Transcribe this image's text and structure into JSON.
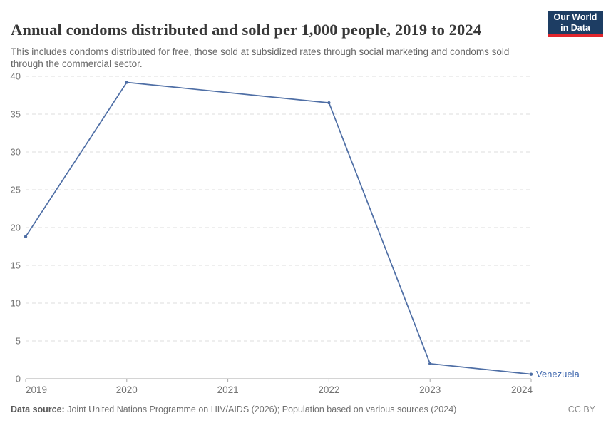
{
  "header": {
    "title": "Annual condoms distributed and sold per 1,000 people, 2019 to 2024",
    "subtitle": "This includes condoms distributed for free, those sold at subsidized rates through social marketing and condoms sold through the commercial sector.",
    "logo": {
      "line1": "Our World",
      "line2": "in Data"
    }
  },
  "footer": {
    "source_label": "Data source:",
    "source_text": " Joint United Nations Programme on HIV/AIDS (2026); Population based on various sources (2024)",
    "license": "CC BY"
  },
  "chart_data": {
    "type": "line",
    "title": "Annual condoms distributed and sold per 1,000 people, 2019 to 2024",
    "xlabel": "",
    "ylabel": "",
    "x": [
      2019,
      2020,
      2021,
      2022,
      2023,
      2024
    ],
    "series": [
      {
        "name": "Venezuela",
        "values": [
          18.8,
          39.2,
          null,
          36.5,
          2,
          0.6
        ],
        "marker_years": [
          2019,
          2020,
          2022,
          2023,
          2024
        ],
        "note": "2021 has no marker; line interpolates between 2020 and 2022"
      }
    ],
    "x_ticks": [
      2019,
      2020,
      2021,
      2022,
      2023,
      2024
    ],
    "y_ticks": [
      0,
      5,
      10,
      15,
      20,
      25,
      30,
      35,
      40
    ],
    "xlim": [
      2019,
      2024
    ],
    "ylim": [
      0,
      40
    ],
    "grid": "horizontal dashed gridlines, solid baseline at 0",
    "legend_position": "end-of-line entity label",
    "entity_label": "Venezuela"
  },
  "colors": {
    "series_line": "#4e6ea5",
    "entity_label": "#3d66ad",
    "gridline": "#dedede",
    "axis_line": "#a8a8a8",
    "tick_text": "#737373",
    "logo_bg": "#1d3d63",
    "logo_stripe": "#e2262d",
    "title_text": "#383838",
    "subtitle_text": "#666666"
  }
}
